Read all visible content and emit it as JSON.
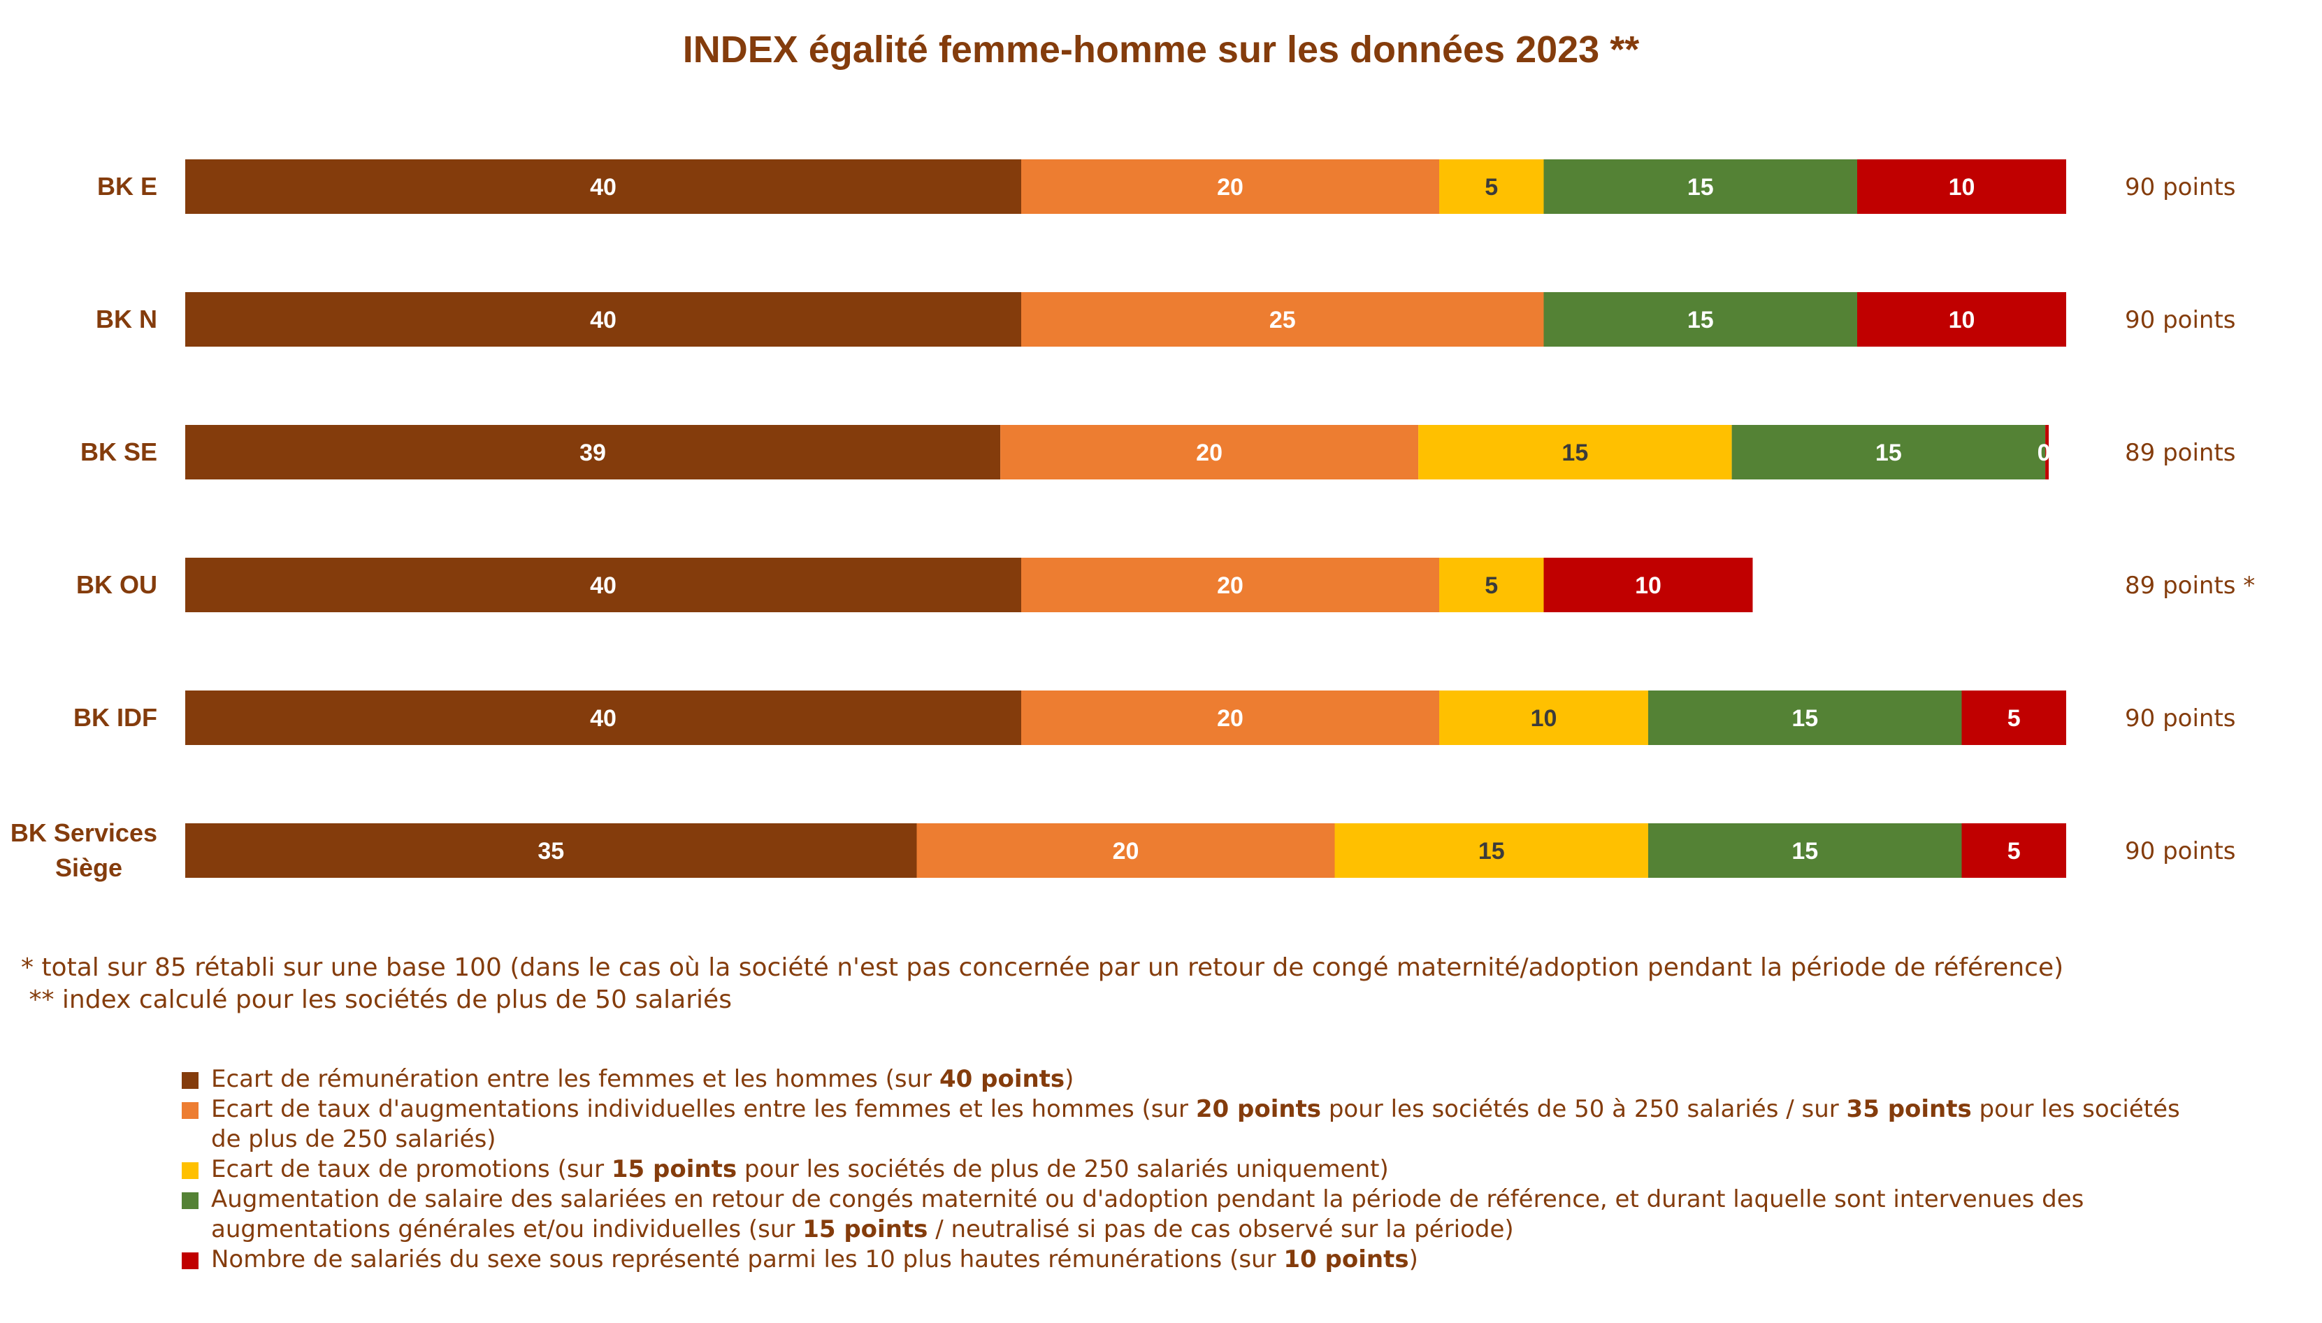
{
  "chart_data": {
    "type": "bar",
    "orientation": "horizontal",
    "stacked": true,
    "title": "INDEX égalité femme-homme sur les données 2023 **",
    "categories": [
      "BK E",
      "BK N",
      "BK SE",
      "BK OU",
      "BK IDF",
      "BK Services Siège"
    ],
    "xlim": [
      0,
      90
    ],
    "series": [
      {
        "color": "#843c0c",
        "values": [
          40,
          40,
          39,
          40,
          40,
          35
        ]
      },
      {
        "color": "#ed7d31",
        "values": [
          20,
          25,
          20,
          20,
          20,
          20
        ]
      },
      {
        "color": "#ffc000",
        "values": [
          5,
          null,
          15,
          5,
          10,
          15
        ]
      },
      {
        "color": "#548235",
        "values": [
          15,
          15,
          15,
          null,
          15,
          15
        ]
      },
      {
        "color": "#c00000",
        "values": [
          10,
          10,
          0,
          10,
          5,
          5
        ]
      }
    ],
    "totals": [
      "90 points",
      "90 points",
      "89 points",
      "89 points *",
      "90 points",
      "90 points"
    ],
    "legend_position": "bottom",
    "grid": false
  },
  "notes": [
    "* total sur 85 rétabli sur une base 100 (dans le cas où la société n'est pas concernée par un retour de congé maternité/adoption pendant la période de référence)",
    " ** index calculé pour les sociétés de plus de 50 salariés"
  ],
  "legend": [
    {
      "color": "#843c0c",
      "parts": [
        {
          "t": "Ecart de rémunération entre les femmes et les hommes (sur "
        },
        {
          "t": "40 points",
          "b": true
        },
        {
          "t": ")"
        }
      ]
    },
    {
      "color": "#ed7d31",
      "parts": [
        {
          "t": "Ecart de taux d'augmentations individuelles entre les femmes et les hommes (sur "
        },
        {
          "t": "20 points",
          "b": true
        },
        {
          "t": " pour les sociétés de 50 à 250 salariés / sur "
        },
        {
          "t": "35 points",
          "b": true
        },
        {
          "t": " pour les sociétés de plus de 250 salariés)"
        }
      ]
    },
    {
      "color": "#ffc000",
      "parts": [
        {
          "t": "Ecart de taux de promotions (sur "
        },
        {
          "t": "15 points",
          "b": true
        },
        {
          "t": " pour les sociétés de plus de 250 salariés uniquement)"
        }
      ]
    },
    {
      "color": "#548235",
      "parts": [
        {
          "t": "Augmentation de salaire des salariées en retour de congés maternité ou d'adoption pendant la période de référence, et durant laquelle sont intervenues des augmentations générales et/ou individuelles (sur "
        },
        {
          "t": "15 points",
          "b": true
        },
        {
          "t": " / neutralisé si pas de cas observé sur la période)"
        }
      ]
    },
    {
      "color": "#c00000",
      "parts": [
        {
          "t": "Nombre de salariés du sexe sous représenté parmi les 10 plus hautes rémunérations (sur "
        },
        {
          "t": "10 points",
          "b": true
        },
        {
          "t": ")"
        }
      ]
    }
  ]
}
